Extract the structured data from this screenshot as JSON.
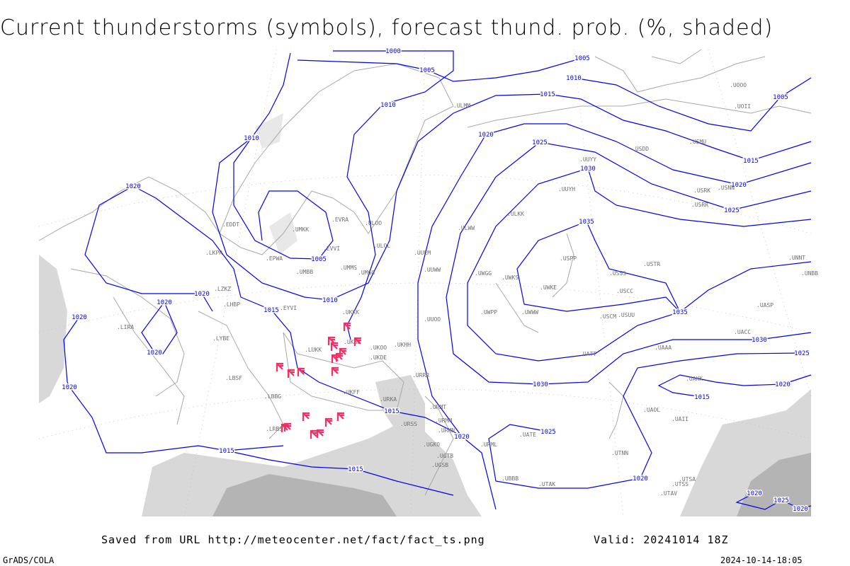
{
  "title": "Current thunderstorms (symbols), forecast thund. prob. (%, shaded)",
  "footer": {
    "source": "Saved from URL http://meteocenter.net/fact/fact_ts.png",
    "valid": "Valid: 20241014 18Z",
    "software": "GrADS/COLA",
    "timestamp": "2024-10-14-18:05"
  },
  "colors": {
    "isobar": "#0000ff",
    "coast": "#a0a0a0",
    "thunderstorm_symbol": "#ff2a60",
    "shading": "#c8c8c8",
    "station_text": "#707070"
  },
  "symbol_icon": "thunderstorm-symbol",
  "isobar_labels": [
    "1000",
    "1005",
    "1005",
    "1010",
    "1010",
    "1010",
    "1015",
    "1020",
    "1025",
    "1030",
    "1035",
    "1020",
    "1005",
    "1010",
    "1015",
    "1020",
    "1020",
    "1020",
    "1020",
    "1020",
    "1015",
    "1020",
    "1025",
    "1030",
    "1035",
    "1030",
    "1025",
    "1020",
    "1015",
    "1020",
    "1015",
    "1015",
    "1005",
    "1015",
    "1020",
    "1025",
    "1020",
    "1025",
    "1020"
  ],
  "stations": [
    "ULMM",
    "ULOO",
    "ULOL",
    "UMKK",
    "EVRA",
    "EVVI",
    "UMMS",
    "UMGG",
    "UMBB",
    "ULWW",
    "UUYY",
    "UUYH",
    "ULKK",
    "UUEM",
    "UUWW",
    "UWGG",
    "UWPP",
    "UUOO",
    "UKKK",
    "UKBB",
    "UKHH",
    "UKOO",
    "UKDE",
    "UKFF",
    "URKA",
    "URRR",
    "URSS",
    "UGKO",
    "UGSB",
    "UGTB",
    "URMT",
    "URMM",
    "URMN",
    "URML",
    "UBBB",
    "LUKK",
    "LRBS",
    "LBBG",
    "LBSF",
    "LYBE",
    "LHBP",
    "LZKZ",
    "LKPR",
    "EDDT",
    "EPWA",
    "EYVI",
    "LIRA",
    "UWKE",
    "UWKS",
    "UWWW",
    "USCM",
    "USCC",
    "USSS",
    "USPP",
    "USTR",
    "UATT",
    "UAAA",
    "UAKK",
    "UACC",
    "UASP",
    "USUU",
    "UNNT",
    "UNBB",
    "USDD",
    "USMU",
    "USNN",
    "USRR",
    "USRK",
    "UOOO",
    "UOII",
    "UTNN",
    "UTSA",
    "UTSS",
    "UTAK",
    "UTAV",
    "UATE",
    "UAOL",
    "UAII"
  ]
}
